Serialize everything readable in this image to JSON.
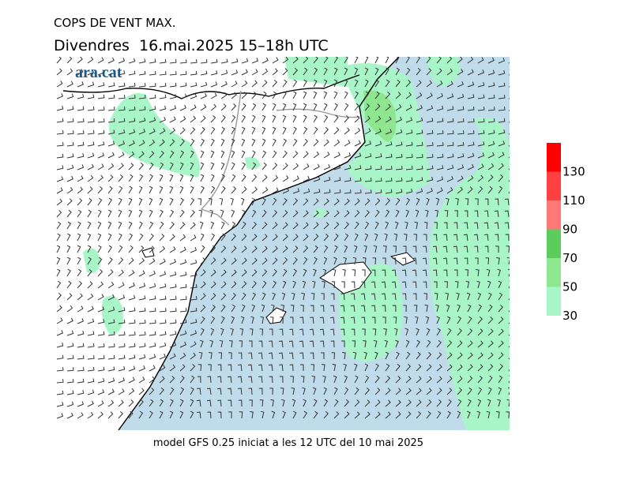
{
  "header": {
    "title": "COPS DE VENT MAX.",
    "subtitle": "Divendres  16.mai.2025 15–18h UTC"
  },
  "logo": "ara.cat",
  "footer": "model GFS 0.25 iniciat a les 12 UTC del 10 mai 2025",
  "legend": {
    "ticks": [
      30,
      50,
      70,
      90,
      110,
      130
    ],
    "colors": [
      "#a8f5c8",
      "#8ee68e",
      "#5ccc5c",
      "#ff7878",
      "#ff4040",
      "#ff0000"
    ]
  }
}
